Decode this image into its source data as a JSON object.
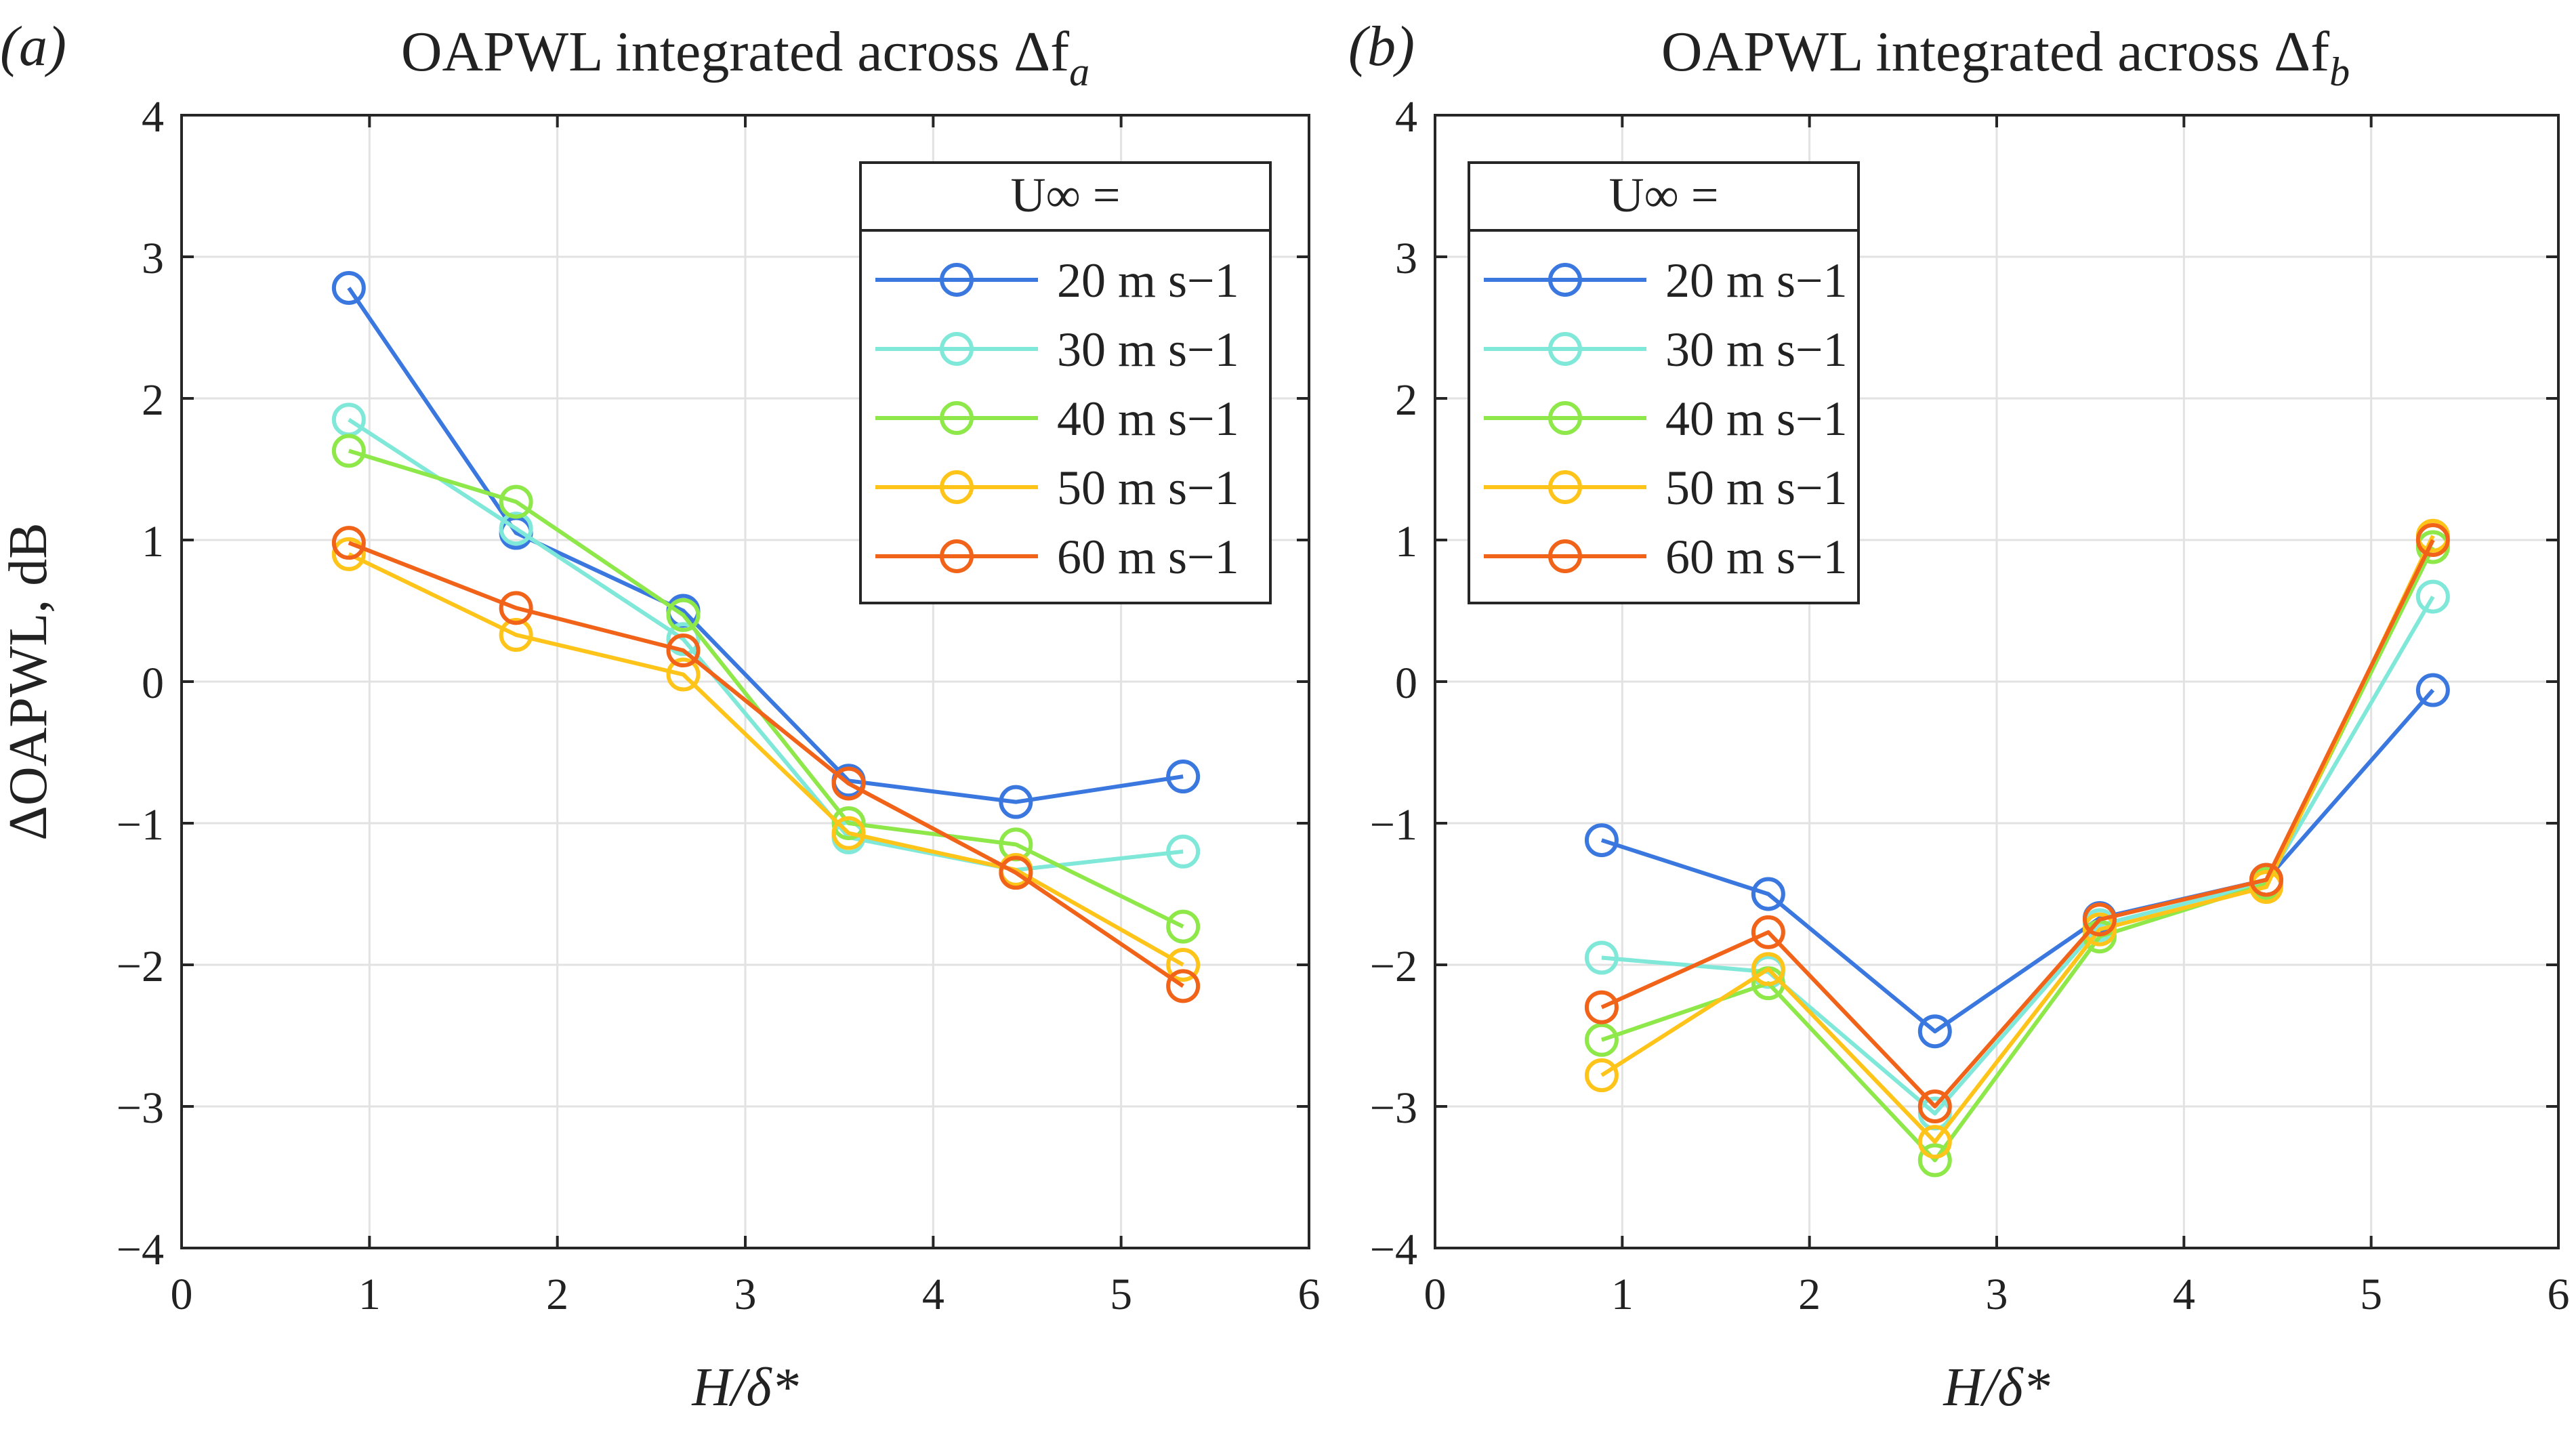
{
  "chart_data": [
    {
      "type": "line",
      "panel_label": "(a)",
      "title": "OAPWL integrated across Δf",
      "title_subscript": "a",
      "xlabel": "H/δ*",
      "ylabel": "ΔOAPWL, dB",
      "xlim": [
        0,
        6
      ],
      "ylim": [
        -4,
        4
      ],
      "xticks": [
        0,
        1,
        2,
        3,
        4,
        5,
        6
      ],
      "yticks": [
        4,
        3,
        2,
        1,
        0,
        -1,
        -2,
        -3,
        -4
      ],
      "ytick_labels": [
        "4",
        "3",
        "2",
        "1",
        "0",
        "−1",
        "−2",
        "−3",
        "−4"
      ],
      "grid": true,
      "legend_position": "top-right",
      "legend_title": "U∞ =",
      "x": [
        0.89,
        1.78,
        2.67,
        3.55,
        4.44,
        5.33
      ],
      "series": [
        {
          "name": "20 m s−1",
          "color": "#3a78e0",
          "values": [
            2.78,
            1.05,
            0.5,
            -0.7,
            -0.85,
            -0.67
          ]
        },
        {
          "name": "30 m s−1",
          "color": "#7fe8d8",
          "values": [
            1.85,
            1.08,
            0.3,
            -1.1,
            -1.33,
            -1.2
          ]
        },
        {
          "name": "40 m s−1",
          "color": "#8ee84a",
          "values": [
            1.63,
            1.27,
            0.47,
            -1.0,
            -1.15,
            -1.73
          ]
        },
        {
          "name": "50 m s−1",
          "color": "#ffc419",
          "values": [
            0.9,
            0.33,
            0.05,
            -1.07,
            -1.33,
            -2.0
          ]
        },
        {
          "name": "60 m s−1",
          "color": "#f2631a",
          "values": [
            0.98,
            0.52,
            0.22,
            -0.72,
            -1.35,
            -2.15
          ]
        }
      ]
    },
    {
      "type": "line",
      "panel_label": "(b)",
      "title": "OAPWL integrated across Δf",
      "title_subscript": "b",
      "xlabel": "H/δ*",
      "ylabel": "",
      "xlim": [
        0,
        6
      ],
      "ylim": [
        -4,
        4
      ],
      "xticks": [
        0,
        1,
        2,
        3,
        4,
        5,
        6
      ],
      "yticks": [
        4,
        3,
        2,
        1,
        0,
        -1,
        -2,
        -3,
        -4
      ],
      "ytick_labels": [
        "4",
        "3",
        "2",
        "1",
        "0",
        "−1",
        "−2",
        "−3",
        "−4"
      ],
      "grid": true,
      "legend_position": "top-left",
      "legend_title": "U∞ =",
      "x": [
        0.89,
        1.78,
        2.67,
        3.55,
        4.44,
        5.33
      ],
      "series": [
        {
          "name": "20 m s−1",
          "color": "#3a78e0",
          "values": [
            -1.12,
            -1.5,
            -2.47,
            -1.67,
            -1.4,
            -0.06
          ]
        },
        {
          "name": "30 m s−1",
          "color": "#7fe8d8",
          "values": [
            -1.95,
            -2.05,
            -3.05,
            -1.72,
            -1.42,
            0.6
          ]
        },
        {
          "name": "40 m s−1",
          "color": "#8ee84a",
          "values": [
            -2.53,
            -2.13,
            -3.38,
            -1.8,
            -1.43,
            0.95
          ]
        },
        {
          "name": "50 m s−1",
          "color": "#ffc419",
          "values": [
            -2.78,
            -2.03,
            -3.25,
            -1.75,
            -1.45,
            1.03
          ]
        },
        {
          "name": "60 m s−1",
          "color": "#f2631a",
          "values": [
            -2.3,
            -1.77,
            -3.0,
            -1.68,
            -1.4,
            1.0
          ]
        }
      ]
    }
  ]
}
